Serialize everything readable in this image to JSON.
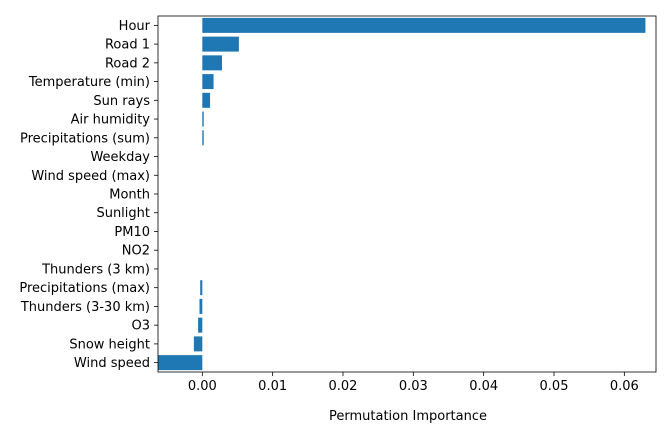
{
  "chart_data": {
    "type": "bar",
    "orientation": "horizontal",
    "title": "",
    "xlabel": "Permutation Importance",
    "ylabel": "",
    "xlim": [
      -0.0063,
      0.0645
    ],
    "xticks": [
      0.0,
      0.01,
      0.02,
      0.03,
      0.04,
      0.05,
      0.06
    ],
    "xtick_labels": [
      "0.00",
      "0.01",
      "0.02",
      "0.03",
      "0.04",
      "0.05",
      "0.06"
    ],
    "grid": false,
    "legend": "none",
    "bar_color": "#1f77b4",
    "categories": [
      "Hour",
      "Road 1",
      "Road 2",
      "Temperature (min)",
      "Sun rays",
      "Air humidity",
      "Precipitations (sum)",
      "Weekday",
      "Wind speed (max)",
      "Month",
      "Sunlight",
      "PM10",
      "NO2",
      "Thunders (3 km)",
      "Precipitations (max)",
      "Thunders (3-30 km)",
      "O3",
      "Snow height",
      "Wind speed"
    ],
    "values": [
      0.063,
      0.0052,
      0.0028,
      0.0016,
      0.0011,
      0.0002,
      0.0002,
      0.0,
      0.0,
      0.0,
      0.0,
      0.0,
      0.0,
      0.0,
      -0.0003,
      -0.0004,
      -0.0006,
      -0.0012,
      -0.0063
    ]
  }
}
